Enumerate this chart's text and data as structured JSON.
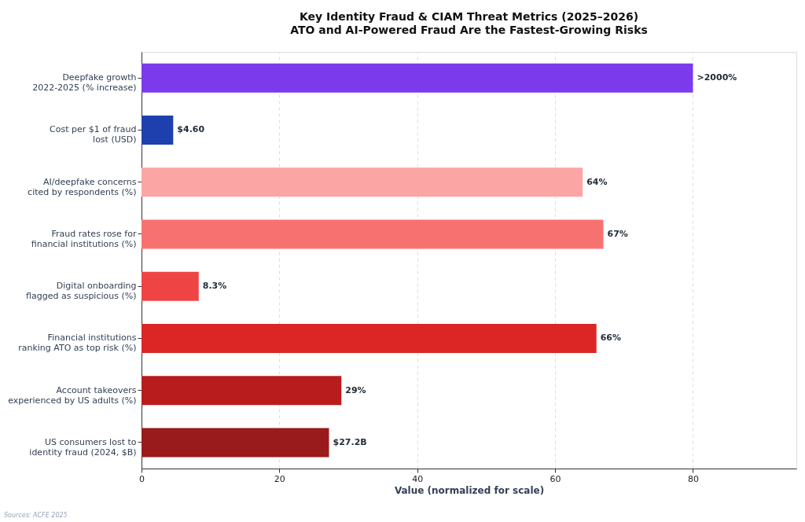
{
  "chart_data": {
    "type": "bar",
    "orientation": "horizontal",
    "title": "Key Identity Fraud & CIAM Threat Metrics (2025–2026)",
    "subtitle": "ATO and AI-Powered Fraud Are the Fastest-Growing Risks",
    "xlabel": "Value (normalized for scale)",
    "categories": [
      "Deepfake growth\n2022-2025 (% increase)",
      "Cost per $1 of fraud\nlost (USD)",
      "AI/deepfake concerns\ncited by respondents (%)",
      "Fraud rates rose for\nfinancial institutions (%)",
      "Digital onboarding\nflagged as suspicious (%)",
      "Financial institutions\nranking ATO as top risk (%)",
      "Account takeovers\nexperienced by US adults (%)",
      "US consumers lost to\nidentity fraud (2024, $B)"
    ],
    "values": [
      80,
      4.6,
      64,
      67,
      8.3,
      66,
      29,
      27.2
    ],
    "colors": [
      "#7c3aed",
      "#1e40af",
      "#fca5a5",
      "#f87171",
      "#ef4444",
      "#dc2626",
      "#b91c1c",
      "#991b1b"
    ],
    "value_labels": [
      ">2000%",
      "$4.60",
      "64%",
      "67%",
      "8.3%",
      "66%",
      "29%",
      "$27.2B"
    ],
    "xlim": [
      0,
      95
    ],
    "xticks": [
      0,
      20,
      40,
      60,
      80
    ],
    "grid": "x",
    "annotations": [
      "Sources: ACFE 2025"
    ]
  }
}
